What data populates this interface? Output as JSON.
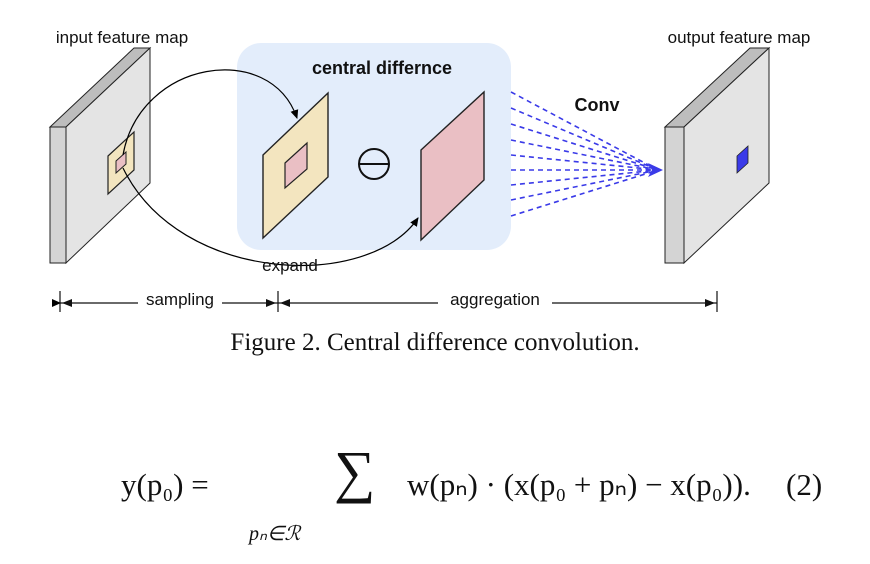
{
  "figure": {
    "labels": {
      "input": "input feature map",
      "output": "output feature map",
      "central": "central differnce",
      "conv": "Conv",
      "expand": "expand",
      "sampling": "sampling",
      "aggregation": "aggregation",
      "minus_symbol": "⊖"
    },
    "colors": {
      "panel_bg": "#e3edfb",
      "map_face": "#e4e4e4",
      "map_side": "#c8c8c8",
      "patch_yellow": "#f3e5bf",
      "patch_pink": "#eabfc4",
      "conv_lines": "#3a3ae8",
      "output_pixel": "#3a3ae8"
    }
  },
  "caption": "Figure 2. Central difference convolution.",
  "equation": {
    "lhs": "y(p₀) = ",
    "sum_symbol": "∑",
    "subscript": "pₙ∈ℛ",
    "rhs": "w(pₙ) · (x(p₀ + pₙ) − x(p₀)).",
    "number": "(2)"
  }
}
